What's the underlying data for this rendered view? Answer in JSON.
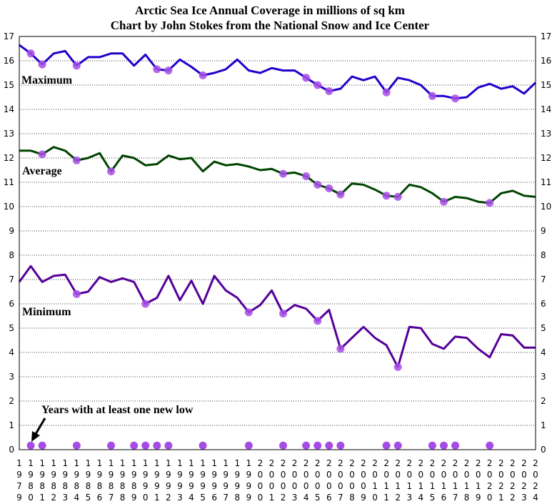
{
  "chart_data": {
    "type": "line",
    "title": "Arctic Sea Ice Annual Coverage in millions of sq km",
    "subtitle": "Chart by John Stokes from the National Snow and Ice Center",
    "x": [
      1979,
      1980,
      1981,
      1982,
      1983,
      1984,
      1985,
      1986,
      1987,
      1988,
      1989,
      1990,
      1991,
      1992,
      1993,
      1994,
      1995,
      1996,
      1997,
      1998,
      1999,
      2000,
      2001,
      2002,
      2003,
      2004,
      2005,
      2006,
      2007,
      2008,
      2009,
      2010,
      2011,
      2012,
      2013,
      2014,
      2015,
      2016,
      2017,
      2018,
      2019,
      2020,
      2021,
      2022,
      2023,
      2024
    ],
    "ylim": [
      0,
      17
    ],
    "yticks": [
      0,
      1,
      2,
      3,
      4,
      5,
      6,
      7,
      8,
      9,
      10,
      11,
      12,
      13,
      14,
      15,
      16,
      17
    ],
    "grid": true,
    "series": [
      {
        "name": "Maximum",
        "color": "#2200cc",
        "values": [
          16.65,
          16.3,
          15.85,
          16.3,
          16.4,
          15.8,
          16.15,
          16.15,
          16.3,
          16.3,
          15.8,
          16.25,
          15.65,
          15.6,
          16.05,
          15.75,
          15.4,
          15.5,
          15.65,
          16.05,
          15.6,
          15.5,
          15.7,
          15.6,
          15.6,
          15.3,
          15.0,
          14.75,
          14.85,
          15.35,
          15.2,
          15.35,
          14.7,
          15.3,
          15.2,
          15.0,
          14.55,
          14.55,
          14.45,
          14.5,
          14.9,
          15.05,
          14.85,
          14.95,
          14.65,
          15.1
        ]
      },
      {
        "name": "Average",
        "color": "#004400",
        "values": [
          12.3,
          12.3,
          12.15,
          12.45,
          12.3,
          11.9,
          12.0,
          12.2,
          11.45,
          12.1,
          12.0,
          11.7,
          11.75,
          12.1,
          11.95,
          12.0,
          11.45,
          11.85,
          11.7,
          11.75,
          11.65,
          11.5,
          11.55,
          11.35,
          11.4,
          11.25,
          10.9,
          10.75,
          10.5,
          10.95,
          10.9,
          10.7,
          10.45,
          10.4,
          10.9,
          10.8,
          10.55,
          10.2,
          10.4,
          10.35,
          10.2,
          10.15,
          10.55,
          10.65,
          10.45,
          10.4
        ]
      },
      {
        "name": "Minimum",
        "color": "#550099",
        "values": [
          6.9,
          7.55,
          6.9,
          7.15,
          7.2,
          6.4,
          6.5,
          7.1,
          6.9,
          7.05,
          6.9,
          6.0,
          6.25,
          7.15,
          6.15,
          6.95,
          6.0,
          7.15,
          6.55,
          6.25,
          5.65,
          5.95,
          6.55,
          5.6,
          5.95,
          5.8,
          5.3,
          5.75,
          4.15,
          4.6,
          5.05,
          4.6,
          4.3,
          3.4,
          5.05,
          5.0,
          4.35,
          4.15,
          4.65,
          4.6,
          4.15,
          3.8,
          4.75,
          4.7,
          4.2,
          4.2
        ]
      }
    ],
    "new_low_years": [
      1980,
      1981,
      1984,
      1987,
      1989,
      1990,
      1991,
      1992,
      1995,
      1999,
      2002,
      2004,
      2005,
      2006,
      2007,
      2011,
      2012,
      2015,
      2016,
      2017,
      2020
    ],
    "marker_color": "#a64ce6",
    "annotation": "Years with at least one new low"
  }
}
